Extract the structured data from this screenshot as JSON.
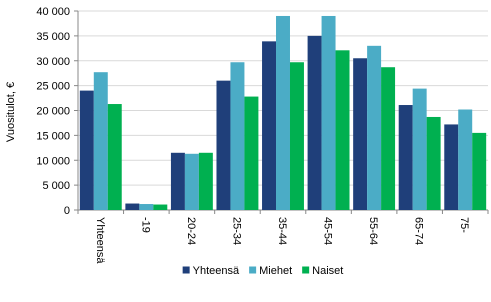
{
  "chart_data": {
    "type": "bar",
    "y_label": "Vuositulot, €",
    "categories": [
      "Yhteensä",
      "-19",
      "20-24",
      "25-34",
      "35-44",
      "45-54",
      "55-64",
      "65-74",
      "75-"
    ],
    "series": [
      {
        "name": "Yhteensä",
        "color": "#1f3f7a",
        "values": [
          24000,
          1300,
          11500,
          26000,
          33900,
          35000,
          30500,
          21100,
          17200
        ]
      },
      {
        "name": "Miehet",
        "color": "#4bacc6",
        "values": [
          27700,
          1200,
          11300,
          29700,
          39000,
          39000,
          33000,
          24400,
          20200
        ]
      },
      {
        "name": "Naiset",
        "color": "#00b050",
        "values": [
          21300,
          1100,
          11500,
          22800,
          29700,
          32100,
          28700,
          18700,
          15500
        ]
      }
    ],
    "ylim": [
      0,
      40000
    ],
    "yticks": [
      0,
      {
        "value": 5000,
        "label": "5 000"
      },
      {
        "value": 10000,
        "label": "10 000"
      },
      {
        "value": 15000,
        "label": "15 000"
      },
      {
        "value": 20000,
        "label": "20 000"
      },
      {
        "value": 25000,
        "label": "25 000"
      },
      {
        "value": 30000,
        "label": "30 000"
      },
      {
        "value": 35000,
        "label": "35 000"
      },
      {
        "value": 40000,
        "label": "40 000"
      }
    ],
    "grid": true,
    "legend": "bottom"
  }
}
